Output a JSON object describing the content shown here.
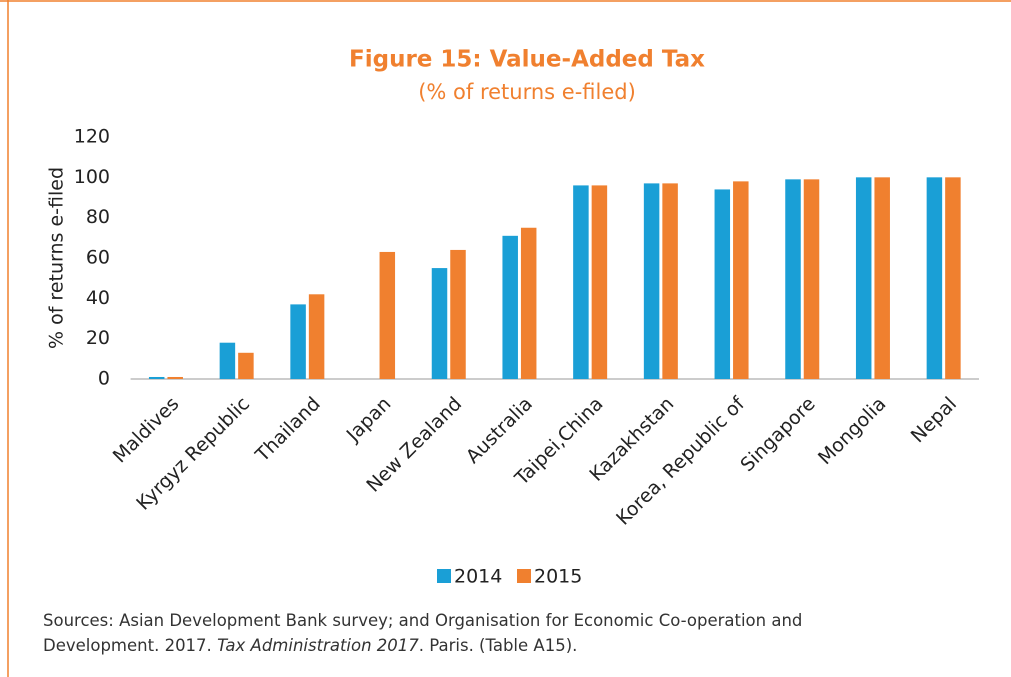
{
  "chart_data": {
    "type": "bar",
    "title": "Figure 15: Value-Added Tax",
    "subtitle": "(% of returns e-filed)",
    "y_label": "% of returns e-filed",
    "categories": [
      "Maldives",
      "Kyrgyz Republic",
      "Thailand",
      "Japan",
      "New Zealand",
      "Australia",
      "Taipei,China",
      "Kazakhstan",
      "Korea, Republic of",
      "Singapore",
      "Mongolia",
      "Nepal"
    ],
    "series": [
      {
        "name": "2014",
        "color": "#1a9fd6",
        "values": [
          1,
          18,
          37,
          null,
          55,
          71,
          96,
          97,
          94,
          99,
          100,
          100
        ]
      },
      {
        "name": "2015",
        "color": "#f0802f",
        "values": [
          1,
          13,
          42,
          63,
          64,
          75,
          96,
          97,
          98,
          99,
          100,
          100
        ]
      }
    ],
    "ylim": [
      0,
      120
    ],
    "yticks": [
      0,
      20,
      40,
      60,
      80,
      100,
      120
    ],
    "grid": false,
    "legend": "bottom",
    "source": [
      "Sources: Asian Development Bank survey; and Organisation for Economic Co-operation and Development. 2017. ",
      "Tax Administration 2017",
      ". Paris. (Table A15)."
    ]
  }
}
